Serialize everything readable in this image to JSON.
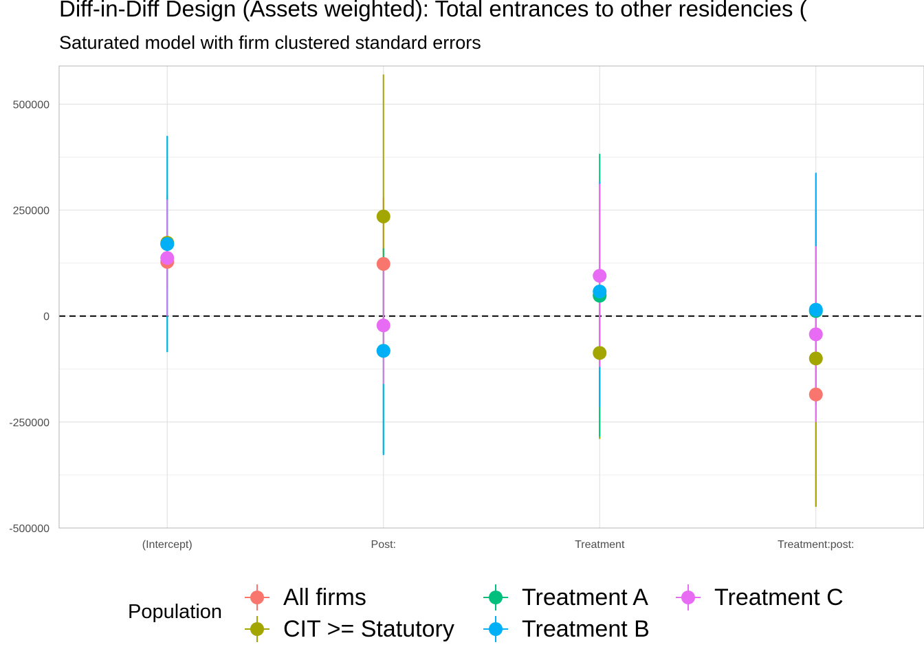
{
  "title": "Diff-in-Diff Design (Assets weighted): Total entrances to other residencies (",
  "subtitle": "Saturated model with firm clustered standard errors",
  "legend": {
    "title": "Population",
    "items": [
      {
        "label": "All firms",
        "color": "#F8766D"
      },
      {
        "label": "CIT >= Statutory",
        "color": "#A3A500"
      },
      {
        "label": "Treatment A",
        "color": "#00BF7D"
      },
      {
        "label": "Treatment B",
        "color": "#00B0F6"
      },
      {
        "label": "Treatment C",
        "color": "#E76BF3"
      }
    ]
  },
  "chart_data": {
    "type": "scatter",
    "subtype": "pointrange",
    "categories": [
      "(Intercept)",
      "Post:",
      "Treatment",
      "Treatment:post:"
    ],
    "ylim": [
      -500000,
      590000
    ],
    "yticks": [
      -500000,
      -250000,
      0,
      250000,
      500000
    ],
    "ytick_labels": [
      "-500000",
      "-250000",
      "0",
      "250000",
      "500000"
    ],
    "reference_line": 0,
    "grid": true,
    "legend_position": "bottom",
    "series": [
      {
        "name": "All firms",
        "color": "#F8766D",
        "estimates": [
          128000,
          123000,
          50000,
          -185000
        ],
        "lower": [
          65000,
          -30000,
          -215000,
          -450000
        ],
        "upper": [
          190000,
          280000,
          315000,
          80000
        ]
      },
      {
        "name": "CIT >= Statutory",
        "color": "#A3A500",
        "estimates": [
          173000,
          235000,
          -87000,
          -100000
        ],
        "lower": [
          65000,
          -100000,
          -290000,
          -450000
        ],
        "upper": [
          285000,
          570000,
          115000,
          250000
        ]
      },
      {
        "name": "Treatment A",
        "color": "#00BF7D",
        "estimates": [
          170000,
          -82000,
          48000,
          12000
        ],
        "lower": [
          -85000,
          -325000,
          -285000,
          -210000
        ],
        "upper": [
          425000,
          160000,
          383000,
          338000
        ]
      },
      {
        "name": "Treatment B",
        "color": "#00B0F6",
        "estimates": [
          170000,
          -82000,
          58000,
          15000
        ],
        "lower": [
          -85000,
          -328000,
          -215000,
          -210000
        ],
        "upper": [
          425000,
          -160000,
          318000,
          338000
        ]
      },
      {
        "name": "Treatment C",
        "color": "#E76BF3",
        "estimates": [
          137000,
          -22000,
          95000,
          -43000
        ],
        "lower": [
          0,
          -160000,
          -120000,
          -250000
        ],
        "upper": [
          275000,
          115000,
          312000,
          165000
        ]
      }
    ]
  }
}
